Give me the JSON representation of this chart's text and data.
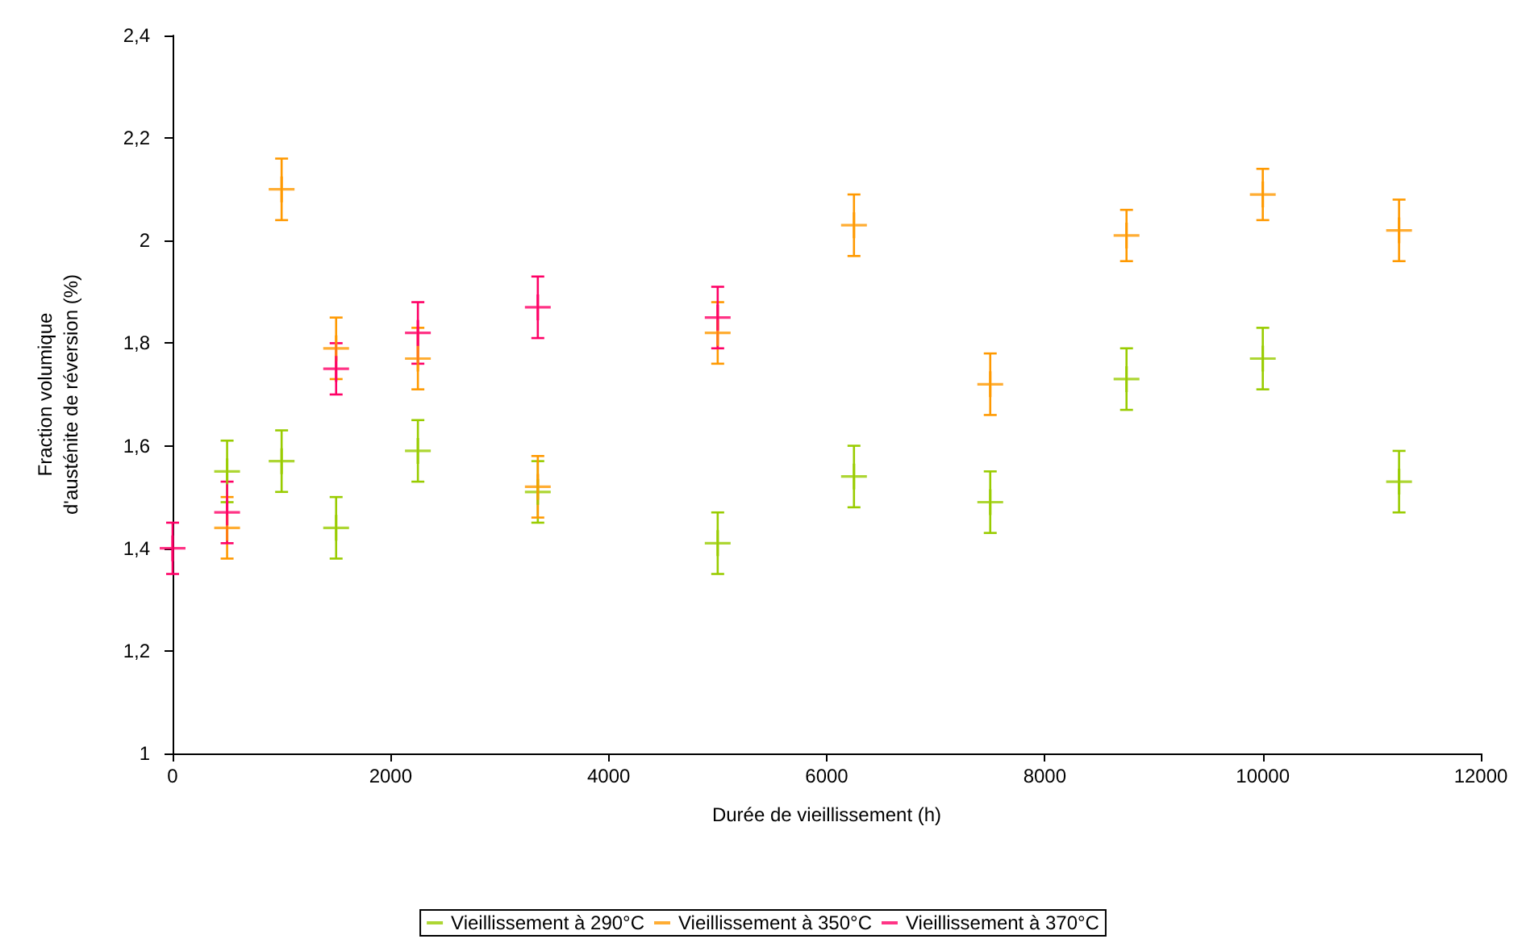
{
  "chart_data": {
    "type": "scatter",
    "xlabel": "Durée de vieillissement (h)",
    "ylabel": "Fraction volumique\nd'austénite de réversion (%)",
    "xlim": [
      0,
      12000
    ],
    "xticks": [
      0,
      2000,
      4000,
      6000,
      8000,
      10000,
      12000
    ],
    "ylim": [
      1,
      2.4
    ],
    "yticks": [
      {
        "value": 1,
        "label": "1"
      },
      {
        "value": 1.2,
        "label": "1,2"
      },
      {
        "value": 1.4,
        "label": "1,4"
      },
      {
        "value": 1.6,
        "label": "1,6"
      },
      {
        "value": 1.8,
        "label": "1,8"
      },
      {
        "value": 2,
        "label": "2"
      },
      {
        "value": 2.2,
        "label": "2,2"
      },
      {
        "value": 2.4,
        "label": "2,4"
      }
    ],
    "grid": false,
    "legend": "bottom",
    "marker": "cross",
    "series": [
      {
        "name": "Vieillissement à 290°C",
        "color": "#99cc00",
        "x": [
          500,
          1000,
          1500,
          2250,
          3350,
          5000,
          6250,
          7500,
          8750,
          10000,
          11250
        ],
        "values": [
          1.55,
          1.57,
          1.44,
          1.59,
          1.51,
          1.41,
          1.54,
          1.49,
          1.73,
          1.77,
          1.53
        ],
        "errors": [
          0.06,
          0.06,
          0.06,
          0.06,
          0.06,
          0.06,
          0.06,
          0.06,
          0.06,
          0.06,
          0.06
        ]
      },
      {
        "name": "Vieillissement à 350°C",
        "color": "#ff9900",
        "x": [
          500,
          1000,
          1500,
          2250,
          3350,
          5000,
          6250,
          7500,
          8750,
          10000,
          11250
        ],
        "values": [
          1.44,
          2.1,
          1.79,
          1.77,
          1.52,
          1.82,
          2.03,
          1.72,
          2.01,
          2.09,
          2.02
        ],
        "errors": [
          0.06,
          0.06,
          0.06,
          0.06,
          0.06,
          0.06,
          0.06,
          0.06,
          0.05,
          0.05,
          0.06
        ]
      },
      {
        "name": "Vieillissement à 370°C",
        "color": "#ff0066",
        "x": [
          0,
          500,
          1500,
          2250,
          3350,
          5000
        ],
        "values": [
          1.4,
          1.47,
          1.75,
          1.82,
          1.87,
          1.85
        ],
        "errors": [
          0.05,
          0.06,
          0.05,
          0.06,
          0.06,
          0.06
        ]
      }
    ]
  }
}
